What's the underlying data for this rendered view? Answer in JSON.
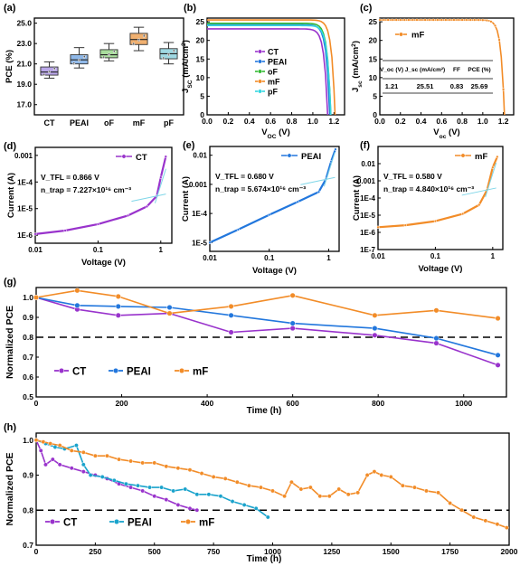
{
  "colors": {
    "CT": "#9933cc",
    "PEAI": "#2277dd",
    "oF": "#33bb33",
    "mF": "#f28c28",
    "pF": "#33d6e0",
    "PEAI_h": "#1aa3cc",
    "dash": "#000000"
  },
  "chart_data": [
    {
      "id": "a",
      "panel_label": "(a)",
      "type": "box",
      "ylabel": "PCE (%)",
      "ylim": [
        16,
        25.5
      ],
      "yticks": [
        "17.0",
        "19.0",
        "21.0",
        "23.0",
        "25.0"
      ],
      "categories": [
        "CT",
        "PEAI",
        "oF",
        "mF",
        "pF"
      ],
      "box_colors": [
        "#b9a6e8",
        "#8fb8e8",
        "#a8dc9c",
        "#f0b070",
        "#9fd8e2"
      ],
      "boxes": [
        {
          "min": 19.6,
          "q1": 19.9,
          "median": 20.2,
          "q3": 20.7,
          "max": 21.2
        },
        {
          "min": 20.6,
          "q1": 21.0,
          "median": 21.4,
          "q3": 21.9,
          "max": 22.6
        },
        {
          "min": 21.3,
          "q1": 21.6,
          "median": 21.9,
          "q3": 22.4,
          "max": 23.0
        },
        {
          "min": 22.3,
          "q1": 22.9,
          "median": 23.4,
          "q3": 24.0,
          "max": 24.6
        },
        {
          "min": 21.0,
          "q1": 21.5,
          "median": 22.0,
          "q3": 22.5,
          "max": 23.1
        }
      ]
    },
    {
      "id": "b",
      "panel_label": "(b)",
      "type": "line",
      "xlabel": "V_OC (V)",
      "ylabel": "J_SC (mA/cm²)",
      "xlim": [
        0,
        1.3
      ],
      "ylim": [
        0,
        26
      ],
      "xticks": [
        0.0,
        0.2,
        0.4,
        0.6,
        0.8,
        1.0,
        1.2
      ],
      "xticklabels": [
        "0.0",
        "0.2",
        "0.4",
        "0.6",
        "0.8",
        "1.0",
        "1.2"
      ],
      "yticks": [
        0,
        5,
        10,
        15,
        20,
        25
      ],
      "series": [
        {
          "name": "CT",
          "jsc": 23.1,
          "voc": 1.14
        },
        {
          "name": "PEAI",
          "jsc": 24.2,
          "voc": 1.16
        },
        {
          "name": "oF",
          "jsc": 24.6,
          "voc": 1.17
        },
        {
          "name": "mF",
          "jsc": 25.5,
          "voc": 1.21
        },
        {
          "name": "pF",
          "jsc": 24.0,
          "voc": 1.17
        }
      ]
    },
    {
      "id": "c",
      "panel_label": "(c)",
      "type": "line",
      "xlabel": "V_oc (V)",
      "ylabel": "J_sc (mA/cm²)",
      "xlim": [
        0,
        1.3
      ],
      "ylim": [
        0,
        26
      ],
      "xticks": [
        0.0,
        0.2,
        0.4,
        0.6,
        0.8,
        1.0,
        1.2
      ],
      "xticklabels": [
        "0.0",
        "0.2",
        "0.4",
        "0.6",
        "0.8",
        "1.0",
        "1.2"
      ],
      "yticks": [
        0,
        5,
        10,
        15,
        20,
        25
      ],
      "series": [
        {
          "name": "mF",
          "jsc": 25.5,
          "voc": 1.21
        }
      ],
      "table": {
        "headers": [
          "V_oc (V)",
          "J_sc (mA/cm²)",
          "FF",
          "PCE (%)"
        ],
        "values": [
          "1.21",
          "25.51",
          "0.83",
          "25.69"
        ]
      }
    },
    {
      "id": "d",
      "panel_label": "(d)",
      "type": "line",
      "xlabel": "Voltage (V)",
      "ylabel": "Current (A)",
      "xlog": true,
      "ylog": true,
      "xlim": [
        0.01,
        1.5
      ],
      "ylim": [
        5e-07,
        0.002
      ],
      "xticks": [
        0.01,
        0.1,
        1
      ],
      "xticklabels": [
        "0.01",
        "0.1",
        "1"
      ],
      "yticks": [
        1e-06,
        1e-05,
        0.0001,
        0.001
      ],
      "yticklabels": [
        "1E-6",
        "1E-5",
        "1E-4",
        "0.001"
      ],
      "series": [
        {
          "name": "CT",
          "x": [
            0.01,
            0.03,
            0.1,
            0.3,
            0.6,
            0.866,
            1.0,
            1.2
          ],
          "y": [
            1.1e-06,
            1.5e-06,
            2.6e-06,
            5.5e-06,
            1.2e-05,
            3e-05,
            0.00015,
            0.0009
          ]
        }
      ],
      "annotations": [
        "V_TFL = 0.866 V",
        "n_trap = 7.227×10¹⁶ cm⁻³"
      ]
    },
    {
      "id": "e",
      "panel_label": "(e)",
      "type": "line",
      "xlabel": "Voltage (V)",
      "ylabel": "Current (A)",
      "xlog": true,
      "ylog": true,
      "xlim": [
        0.01,
        1.5
      ],
      "ylim": [
        5e-06,
        0.02
      ],
      "xticks": [
        0.01,
        0.1,
        1
      ],
      "xticklabels": [
        "0.01",
        "0.1",
        "1"
      ],
      "yticks": [
        1e-05,
        0.0001,
        0.001,
        0.01
      ],
      "yticklabels": [
        "1E-5",
        "1E-4",
        "0.001",
        "0.01"
      ],
      "series": [
        {
          "name": "PEAI",
          "x": [
            0.01,
            0.03,
            0.1,
            0.3,
            0.68,
            0.9,
            1.1,
            1.3
          ],
          "y": [
            1e-05,
            2.8e-05,
            9e-05,
            0.00025,
            0.00055,
            0.0015,
            0.006,
            0.016
          ]
        }
      ],
      "annotations": [
        "V_TFL = 0.680 V",
        "n_trap = 5.674×10¹⁶ cm⁻³"
      ]
    },
    {
      "id": "f",
      "panel_label": "(f)",
      "type": "line",
      "xlabel": "Voltage (V)",
      "ylabel": "Current (A)",
      "xlog": true,
      "ylog": true,
      "xlim": [
        0.01,
        1.5
      ],
      "ylim": [
        1e-07,
        0.1
      ],
      "xticks": [
        0.01,
        0.1,
        1
      ],
      "xticklabels": [
        "0.01",
        "0.1",
        "1"
      ],
      "yticks": [
        1e-07,
        1e-06,
        1e-05,
        0.0001,
        0.001,
        0.01
      ],
      "yticklabels": [
        "1E-7",
        "1E-6",
        "1E-5",
        "1E-4",
        "0.001",
        "0.01"
      ],
      "series": [
        {
          "name": "mF",
          "x": [
            0.01,
            0.03,
            0.1,
            0.3,
            0.58,
            0.8,
            1.0,
            1.2
          ],
          "y": [
            2e-06,
            2.6e-06,
            4.5e-06,
            1.2e-05,
            4e-05,
            0.0003,
            0.006,
            0.025
          ]
        }
      ],
      "annotations": [
        "V_TFL = 0.580 V",
        "n_trap = 4.840×10¹⁶ cm⁻³"
      ]
    },
    {
      "id": "g",
      "panel_label": "(g)",
      "type": "line",
      "xlabel": "Time (h)",
      "ylabel": "Normalized PCE",
      "xlim": [
        0,
        1100
      ],
      "ylim": [
        0.5,
        1.05
      ],
      "xticks": [
        0,
        200,
        400,
        600,
        800,
        1000
      ],
      "yticks": [
        0.5,
        0.6,
        0.7,
        0.8,
        0.9,
        1.0
      ],
      "yticklabels": [
        "0.5",
        "0.6",
        "0.7",
        "0.8",
        "0.9",
        "1.0"
      ],
      "reference_line": 0.8,
      "series": [
        {
          "name": "CT",
          "x": [
            0,
            96,
            192,
            312,
            456,
            600,
            792,
            936,
            1080
          ],
          "y": [
            1.0,
            0.94,
            0.91,
            0.92,
            0.825,
            0.845,
            0.81,
            0.77,
            0.66
          ]
        },
        {
          "name": "PEAI",
          "x": [
            0,
            96,
            192,
            312,
            456,
            600,
            792,
            936,
            1080
          ],
          "y": [
            1.0,
            0.96,
            0.955,
            0.95,
            0.91,
            0.87,
            0.845,
            0.795,
            0.71
          ]
        },
        {
          "name": "mF",
          "x": [
            0,
            96,
            192,
            312,
            456,
            600,
            792,
            936,
            1080
          ],
          "y": [
            1.0,
            1.035,
            1.005,
            0.92,
            0.955,
            1.01,
            0.91,
            0.935,
            0.895
          ]
        }
      ]
    },
    {
      "id": "h",
      "panel_label": "(h)",
      "type": "line",
      "xlabel": "Time (h)",
      "ylabel": "Normalized PCE",
      "xlim": [
        0,
        2000
      ],
      "ylim": [
        0.7,
        1.02
      ],
      "xticks": [
        0,
        250,
        500,
        750,
        1000,
        1250,
        1500,
        1750,
        2000
      ],
      "yticks": [
        0.7,
        0.8,
        0.9,
        1.0
      ],
      "yticklabels": [
        "0.7",
        "0.8",
        "0.9",
        "1.0"
      ],
      "reference_line": 0.8,
      "series": [
        {
          "name": "CT",
          "x": [
            0,
            20,
            40,
            70,
            100,
            150,
            200,
            250,
            300,
            350,
            400,
            450,
            500,
            550,
            600,
            650,
            680
          ],
          "y": [
            1.0,
            0.97,
            0.93,
            0.945,
            0.93,
            0.92,
            0.91,
            0.9,
            0.89,
            0.875,
            0.865,
            0.855,
            0.84,
            0.83,
            0.815,
            0.805,
            0.8
          ]
        },
        {
          "name": "PEAI",
          "x": [
            0,
            40,
            80,
            120,
            170,
            200,
            230,
            280,
            330,
            380,
            430,
            480,
            530,
            580,
            630,
            680,
            730,
            780,
            830,
            880,
            930,
            980
          ],
          "y": [
            1.0,
            0.99,
            0.98,
            0.975,
            0.985,
            0.93,
            0.9,
            0.895,
            0.885,
            0.875,
            0.87,
            0.865,
            0.865,
            0.855,
            0.86,
            0.845,
            0.845,
            0.84,
            0.825,
            0.815,
            0.805,
            0.78
          ]
        },
        {
          "name": "mF",
          "x": [
            0,
            30,
            60,
            100,
            150,
            200,
            250,
            300,
            350,
            400,
            450,
            500,
            550,
            600,
            650,
            700,
            750,
            800,
            850,
            900,
            950,
            1000,
            1050,
            1080,
            1120,
            1160,
            1200,
            1240,
            1280,
            1320,
            1360,
            1400,
            1430,
            1460,
            1500,
            1550,
            1600,
            1650,
            1700,
            1750,
            1800,
            1850,
            1900,
            1950,
            1990
          ],
          "y": [
            1.0,
            0.995,
            0.99,
            0.985,
            0.97,
            0.965,
            0.955,
            0.955,
            0.945,
            0.94,
            0.935,
            0.935,
            0.925,
            0.92,
            0.915,
            0.905,
            0.895,
            0.89,
            0.88,
            0.87,
            0.865,
            0.855,
            0.84,
            0.88,
            0.86,
            0.865,
            0.84,
            0.84,
            0.86,
            0.845,
            0.85,
            0.9,
            0.91,
            0.9,
            0.895,
            0.87,
            0.865,
            0.855,
            0.85,
            0.82,
            0.8,
            0.78,
            0.77,
            0.76,
            0.75
          ]
        }
      ]
    }
  ]
}
